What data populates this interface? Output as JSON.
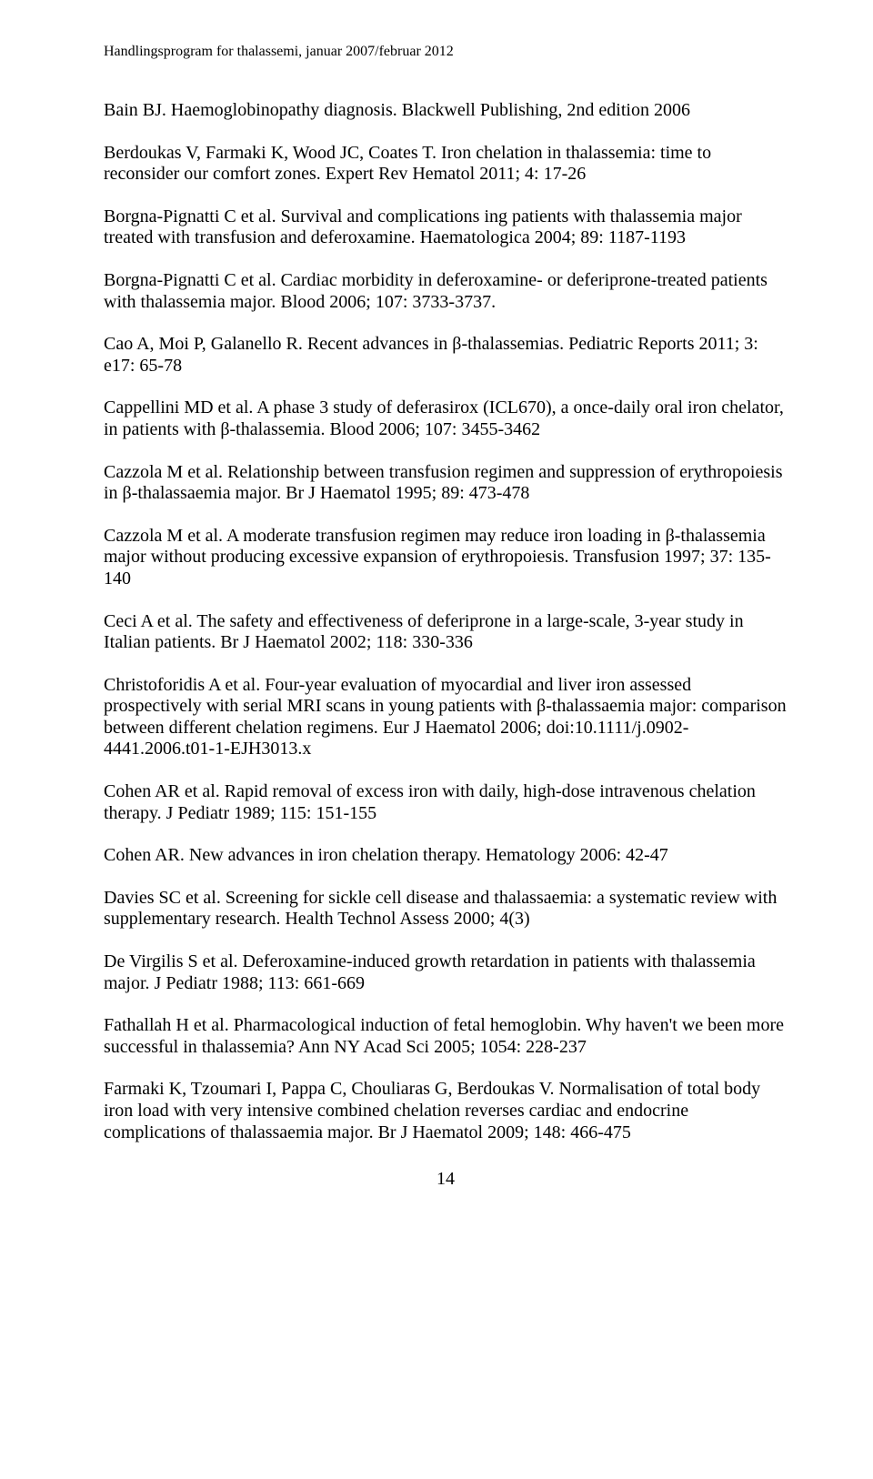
{
  "header": "Handlingsprogram for thalassemi, januar 2007/februar 2012",
  "refs": [
    "Bain BJ. Haemoglobinopathy diagnosis. Blackwell Publishing, 2nd edition 2006",
    "Berdoukas V, Farmaki K, Wood JC, Coates T. Iron chelation in thalassemia: time to reconsider our comfort zones. Expert Rev Hematol 2011; 4: 17-26",
    "Borgna-Pignatti C et al. Survival and complications ing patients with thalassemia major treated with transfusion and deferoxamine. Haematologica 2004; 89: 1187-1193",
    "Borgna-Pignatti C et al. Cardiac morbidity in deferoxamine- or deferiprone-treated patients with thalassemia major. Blood 2006; 107: 3733-3737.",
    "Cao A, Moi P, Galanello R. Recent advances in β-thalassemias. Pediatric Reports 2011; 3: e17: 65-78",
    "Cappellini MD et al. A phase 3 study of deferasirox  (ICL670), a once-daily oral iron chelator, in patients with β-thalassemia. Blood 2006; 107: 3455-3462",
    "Cazzola M et al. Relationship between transfusion regimen and suppression of erythropoiesis in β-thalassaemia major. Br J Haematol 1995; 89: 473-478",
    "Cazzola M et al. A moderate transfusion regimen may reduce iron loading in β-thalassemia major without producing excessive expansion of erythropoiesis. Transfusion 1997; 37: 135-140",
    "Ceci A et al. The safety and effectiveness of deferiprone in a large-scale, 3-year study in Italian patients. Br J Haematol 2002; 118: 330-336",
    "Christoforidis A et al. Four-year evaluation of myocardial and liver iron assessed prospectively with serial MRI scans in young patients with β-thalassaemia major: comparison between different chelation regimens. Eur J Haematol 2006; doi:10.1111/j.0902-4441.2006.t01-1-EJH3013.x",
    "Cohen AR et al. Rapid removal of excess iron with daily, high-dose intravenous chelation therapy. J Pediatr 1989; 115: 151-155",
    "Cohen AR. New advances in iron chelation therapy. Hematology 2006: 42-47",
    "Davies SC et al. Screening for sickle cell disease and thalassaemia: a systematic review with supplementary research. Health Technol Assess 2000; 4(3)",
    "De Virgilis S et al. Deferoxamine-induced growth retardation in patients with thalassemia major. J Pediatr 1988; 113: 661-669",
    "Fathallah H et al. Pharmacological induction of fetal hemoglobin. Why haven't we been more successful in thalassemia? Ann NY Acad Sci 2005; 1054: 228-237",
    "Farmaki K, Tzoumari I, Pappa C, Chouliaras G, Berdoukas V. Normalisation of total body iron load with very intensive combined chelation reverses cardiac and endocrine complications of thalassaemia major. Br J Haematol 2009; 148: 466-475"
  ],
  "pageNumber": "14"
}
